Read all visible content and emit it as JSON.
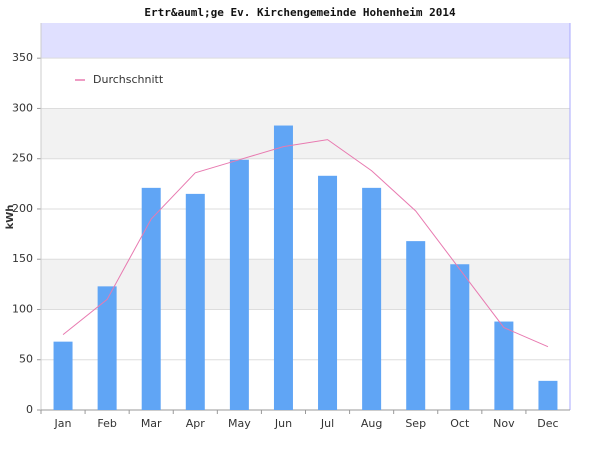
{
  "chart_data": {
    "type": "bar",
    "title": "Ertr&auml;ge Ev. Kirchengemeinde Hohenheim 2014",
    "y_label": "kWh",
    "categories": [
      "Jan",
      "Feb",
      "Mar",
      "Apr",
      "May",
      "Jun",
      "Jul",
      "Aug",
      "Sep",
      "Oct",
      "Nov",
      "Dec"
    ],
    "values": [
      68,
      123,
      221,
      215,
      249,
      283,
      233,
      221,
      168,
      145,
      88,
      29
    ],
    "color": "#60a5f5",
    "series": [
      {
        "name": "Durchschnitt",
        "type": "line",
        "color": "#e87ab0",
        "values": [
          75,
          110,
          190,
          236,
          249,
          262,
          269,
          238,
          198,
          140,
          82,
          63
        ]
      }
    ],
    "ylim": [
      0,
      385
    ],
    "yticks": [
      0,
      50,
      100,
      150,
      200,
      250,
      300,
      350
    ],
    "grid": true,
    "shaded_bands": [
      [
        100,
        150
      ],
      [
        250,
        300
      ]
    ],
    "top_band": [
      350,
      385
    ],
    "legend": "top-left"
  }
}
